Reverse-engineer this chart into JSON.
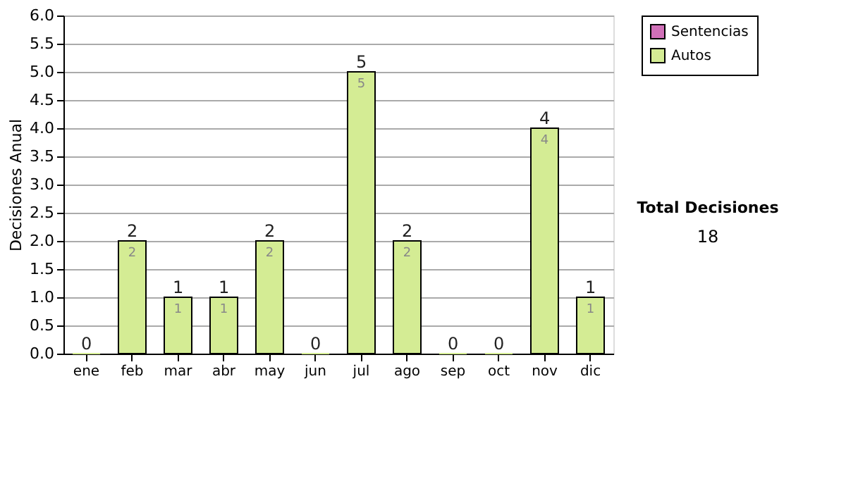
{
  "chart_data": {
    "type": "bar",
    "stacked": true,
    "ylabel": "Decisiones Anual",
    "categories": [
      "ene",
      "feb",
      "mar",
      "abr",
      "may",
      "jun",
      "jul",
      "ago",
      "sep",
      "oct",
      "nov",
      "dic"
    ],
    "series": [
      {
        "name": "Sentencias",
        "color": "#d070b8",
        "values": [
          0,
          0,
          0,
          0,
          0,
          0,
          0,
          0,
          0,
          0,
          0,
          0
        ]
      },
      {
        "name": "Autos",
        "color": "#d4ec94",
        "values": [
          0,
          2,
          1,
          1,
          2,
          0,
          5,
          2,
          0,
          0,
          4,
          1
        ],
        "value_labels": [
          null,
          "2",
          "1",
          "1",
          "2",
          null,
          "5",
          "2",
          null,
          null,
          "4",
          "1"
        ]
      }
    ],
    "totals": [
      "0",
      "2",
      "1",
      "1",
      "2",
      "0",
      "5",
      "2",
      "0",
      "0",
      "4",
      "1"
    ],
    "ylim": [
      0,
      6
    ],
    "yticks": [
      {
        "value": 0,
        "label": "0.0"
      },
      {
        "value": 0.5,
        "label": "0.5"
      },
      {
        "value": 1,
        "label": "1.0"
      },
      {
        "value": 1.5,
        "label": "1.5"
      },
      {
        "value": 2,
        "label": "2.0"
      },
      {
        "value": 2.5,
        "label": "2.5"
      },
      {
        "value": 3,
        "label": "3.0"
      },
      {
        "value": 3.5,
        "label": "3.5"
      },
      {
        "value": 4,
        "label": "4.0"
      },
      {
        "value": 4.5,
        "label": "4.5"
      },
      {
        "value": 5,
        "label": "5.0"
      },
      {
        "value": 5.5,
        "label": "5.5"
      },
      {
        "value": 6,
        "label": "6.0"
      }
    ],
    "grid": "y",
    "legend": "right",
    "annotations": [
      "Total Decisiones",
      "18"
    ]
  }
}
